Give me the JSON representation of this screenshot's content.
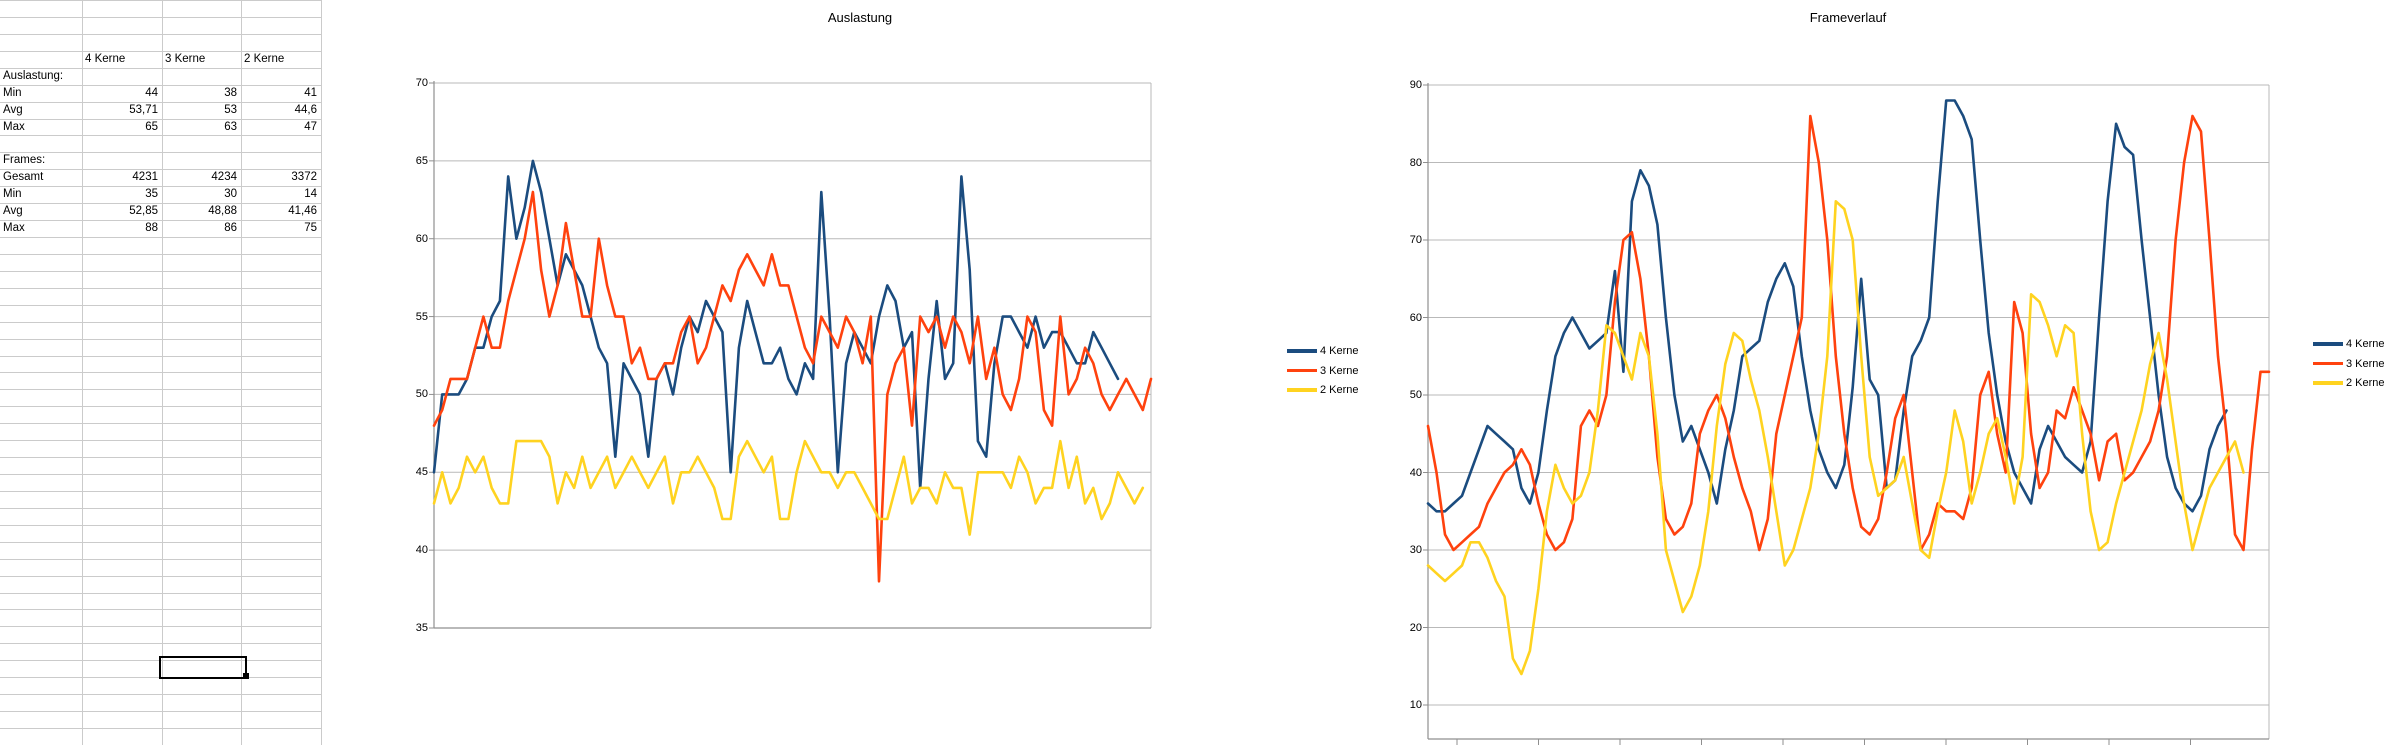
{
  "sheet": {
    "columns": [
      "A",
      "B",
      "C",
      "D"
    ],
    "rows": [
      {
        "r": 3,
        "cells": [
          {
            "c": 1,
            "text": "4 Kerne",
            "align": "l"
          },
          {
            "c": 2,
            "text": "3 Kerne",
            "align": "l"
          },
          {
            "c": 3,
            "text": "2 Kerne",
            "align": "l"
          }
        ]
      },
      {
        "r": 4,
        "cells": [
          {
            "c": 0,
            "text": "Auslastung:",
            "align": "l"
          }
        ]
      },
      {
        "r": 5,
        "cells": [
          {
            "c": 0,
            "text": "Min",
            "align": "l"
          },
          {
            "c": 1,
            "text": "44",
            "align": "r"
          },
          {
            "c": 2,
            "text": "38",
            "align": "r"
          },
          {
            "c": 3,
            "text": "41",
            "align": "r"
          }
        ]
      },
      {
        "r": 6,
        "cells": [
          {
            "c": 0,
            "text": "Avg",
            "align": "l"
          },
          {
            "c": 1,
            "text": "53,71",
            "align": "r"
          },
          {
            "c": 2,
            "text": "53",
            "align": "r"
          },
          {
            "c": 3,
            "text": "44,6",
            "align": "r"
          }
        ]
      },
      {
        "r": 7,
        "cells": [
          {
            "c": 0,
            "text": "Max",
            "align": "l"
          },
          {
            "c": 1,
            "text": "65",
            "align": "r"
          },
          {
            "c": 2,
            "text": "63",
            "align": "r"
          },
          {
            "c": 3,
            "text": "47",
            "align": "r"
          }
        ]
      },
      {
        "r": 9,
        "cells": [
          {
            "c": 0,
            "text": "Frames:",
            "align": "l"
          }
        ]
      },
      {
        "r": 10,
        "cells": [
          {
            "c": 0,
            "text": "Gesamt",
            "align": "l"
          },
          {
            "c": 1,
            "text": "4231",
            "align": "r"
          },
          {
            "c": 2,
            "text": "4234",
            "align": "r"
          },
          {
            "c": 3,
            "text": "3372",
            "align": "r"
          }
        ]
      },
      {
        "r": 11,
        "cells": [
          {
            "c": 0,
            "text": "Min",
            "align": "l"
          },
          {
            "c": 1,
            "text": "35",
            "align": "r"
          },
          {
            "c": 2,
            "text": "30",
            "align": "r"
          },
          {
            "c": 3,
            "text": "14",
            "align": "r"
          }
        ]
      },
      {
        "r": 12,
        "cells": [
          {
            "c": 0,
            "text": "Avg",
            "align": "l"
          },
          {
            "c": 1,
            "text": "52,85",
            "align": "r"
          },
          {
            "c": 2,
            "text": "48,88",
            "align": "r"
          },
          {
            "c": 3,
            "text": "41,46",
            "align": "r"
          }
        ]
      },
      {
        "r": 13,
        "cells": [
          {
            "c": 0,
            "text": "Max",
            "align": "l"
          },
          {
            "c": 1,
            "text": "88",
            "align": "r"
          },
          {
            "c": 2,
            "text": "86",
            "align": "r"
          },
          {
            "c": 3,
            "text": "75",
            "align": "r"
          }
        ]
      }
    ],
    "selected_cell": {
      "row": 39,
      "col": 2
    }
  },
  "colors": {
    "series_blue": "#1B4C7F",
    "series_red": "#FF420E",
    "series_yellow": "#FFD320",
    "grid": "#b9b9b9",
    "axis": "#8f8f8f",
    "cellgrid": "#cbcbcb"
  },
  "chart_data": [
    {
      "id": "auslastung",
      "type": "line",
      "title": "Auslastung",
      "x": "frame-sample-index",
      "ylim": [
        35,
        70
      ],
      "yticks": [
        35,
        40,
        45,
        50,
        55,
        60,
        65,
        70
      ],
      "grid": true,
      "legend_position": "right",
      "series": [
        {
          "name": "4 Kerne",
          "color": "#1B4C7F",
          "values": [
            45,
            50,
            50,
            50,
            51,
            53,
            53,
            55,
            56,
            64,
            60,
            62,
            65,
            63,
            60,
            57,
            59,
            58,
            57,
            55,
            53,
            52,
            46,
            52,
            51,
            50,
            46,
            51,
            52,
            50,
            53,
            55,
            54,
            56,
            55,
            54,
            45,
            53,
            56,
            54,
            52,
            52,
            53,
            51,
            50,
            52,
            51,
            63,
            55,
            45,
            52,
            54,
            53,
            52,
            55,
            57,
            56,
            53,
            54,
            44,
            51,
            56,
            51,
            52,
            64,
            58,
            47,
            46,
            52,
            55,
            55,
            54,
            53,
            55,
            53,
            54,
            54,
            53,
            52,
            52,
            54,
            53,
            52,
            51
          ]
        },
        {
          "name": "3 Kerne",
          "color": "#FF420E",
          "values": [
            48,
            49,
            51,
            51,
            51,
            53,
            55,
            53,
            53,
            56,
            58,
            60,
            63,
            58,
            55,
            57,
            61,
            58,
            55,
            55,
            60,
            57,
            55,
            55,
            52,
            53,
            51,
            51,
            52,
            52,
            54,
            55,
            52,
            53,
            55,
            57,
            56,
            58,
            59,
            58,
            57,
            59,
            57,
            57,
            55,
            53,
            52,
            55,
            54,
            53,
            55,
            54,
            52,
            55,
            38,
            50,
            52,
            53,
            48,
            55,
            54,
            55,
            53,
            55,
            54,
            52,
            55,
            51,
            53,
            50,
            49,
            51,
            55,
            54,
            49,
            48,
            55,
            50,
            51,
            53,
            52,
            50,
            49,
            50,
            51,
            50,
            49,
            51
          ]
        },
        {
          "name": "2 Kerne",
          "color": "#FFD320",
          "values": [
            43,
            45,
            43,
            44,
            46,
            45,
            46,
            44,
            43,
            43,
            47,
            47,
            47,
            47,
            46,
            43,
            45,
            44,
            46,
            44,
            45,
            46,
            44,
            45,
            46,
            45,
            44,
            45,
            46,
            43,
            45,
            45,
            46,
            45,
            44,
            42,
            42,
            46,
            47,
            46,
            45,
            46,
            42,
            42,
            45,
            47,
            46,
            45,
            45,
            44,
            45,
            45,
            44,
            43,
            42,
            42,
            44,
            46,
            43,
            44,
            44,
            43,
            45,
            44,
            44,
            41,
            45,
            45,
            45,
            45,
            44,
            46,
            45,
            43,
            44,
            44,
            47,
            44,
            46,
            43,
            44,
            42,
            43,
            45,
            44,
            43,
            44
          ]
        }
      ]
    },
    {
      "id": "frameverlauf",
      "type": "line",
      "title": "Frameverlauf",
      "x": "time-sample-index",
      "ylim": [
        10,
        90
      ],
      "yticks": [
        10,
        20,
        30,
        40,
        50,
        60,
        70,
        80,
        90
      ],
      "grid": true,
      "legend_position": "right",
      "series": [
        {
          "name": "4 Kerne",
          "color": "#1B4C7F",
          "values": [
            36,
            35,
            35,
            36,
            37,
            40,
            43,
            46,
            45,
            44,
            43,
            38,
            36,
            40,
            48,
            55,
            58,
            60,
            58,
            56,
            57,
            58,
            66,
            53,
            75,
            79,
            77,
            72,
            60,
            50,
            44,
            46,
            43,
            40,
            36,
            43,
            48,
            55,
            56,
            57,
            62,
            65,
            67,
            64,
            55,
            48,
            43,
            40,
            38,
            41,
            51,
            65,
            52,
            50,
            38,
            39,
            48,
            55,
            57,
            60,
            75,
            88,
            88,
            86,
            83,
            70,
            58,
            50,
            44,
            40,
            38,
            36,
            43,
            46,
            44,
            42,
            41,
            40,
            44,
            60,
            75,
            85,
            82,
            81,
            70,
            60,
            50,
            42,
            38,
            36,
            35,
            37,
            43,
            46,
            48
          ]
        },
        {
          "name": "3 Kerne",
          "color": "#FF420E",
          "values": [
            46,
            40,
            32,
            30,
            31,
            32,
            33,
            36,
            38,
            40,
            41,
            43,
            41,
            36,
            32,
            30,
            31,
            34,
            46,
            48,
            46,
            50,
            62,
            70,
            71,
            65,
            55,
            42,
            34,
            32,
            33,
            36,
            45,
            48,
            50,
            47,
            42,
            38,
            35,
            30,
            34,
            45,
            50,
            55,
            60,
            86,
            80,
            70,
            55,
            45,
            38,
            33,
            32,
            34,
            40,
            47,
            50,
            40,
            30,
            32,
            36,
            35,
            35,
            34,
            38,
            50,
            53,
            45,
            40,
            62,
            58,
            45,
            38,
            40,
            48,
            47,
            51,
            48,
            45,
            39,
            44,
            45,
            39,
            40,
            42,
            44,
            48,
            55,
            70,
            80,
            86,
            84,
            70,
            55,
            45,
            32,
            30,
            43,
            53,
            53
          ]
        },
        {
          "name": "2 Kerne",
          "color": "#FFD320",
          "values": [
            28,
            27,
            26,
            27,
            28,
            31,
            31,
            29,
            26,
            24,
            16,
            14,
            17,
            25,
            35,
            41,
            38,
            36,
            37,
            40,
            48,
            59,
            58,
            55,
            52,
            58,
            55,
            45,
            30,
            26,
            22,
            24,
            28,
            35,
            46,
            54,
            58,
            57,
            52,
            48,
            42,
            35,
            28,
            30,
            34,
            38,
            45,
            55,
            75,
            74,
            70,
            55,
            42,
            37,
            38,
            39,
            42,
            36,
            30,
            29,
            35,
            40,
            48,
            44,
            36,
            40,
            45,
            47,
            42,
            36,
            42,
            63,
            62,
            59,
            55,
            59,
            58,
            45,
            35,
            30,
            31,
            36,
            40,
            44,
            48,
            54,
            58,
            52,
            44,
            36,
            30,
            34,
            38,
            40,
            42,
            44,
            40
          ]
        }
      ]
    }
  ]
}
